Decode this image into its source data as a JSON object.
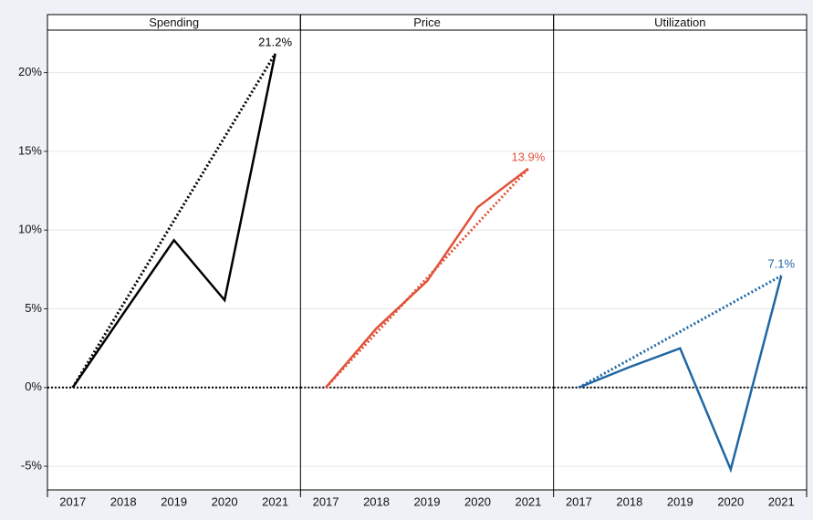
{
  "chart_data": [
    {
      "type": "line",
      "title": "Spending",
      "categories": [
        "2017",
        "2018",
        "2019",
        "2020",
        "2021"
      ],
      "series": [
        {
          "color": "#000000",
          "style": "solid",
          "values": [
            0,
            4.7,
            9.36,
            5.55,
            21.2
          ],
          "value_labels": [
            null,
            null,
            null,
            null,
            "21.2%"
          ]
        },
        {
          "color": "#000000",
          "style": "dotted",
          "values": [
            0,
            5.3,
            10.6,
            15.9,
            21.2
          ]
        }
      ],
      "ylim": [
        -6.5,
        22.7
      ],
      "yticks": [
        {
          "value": -5,
          "label": "-5%"
        },
        {
          "value": 0,
          "label": "0%"
        },
        {
          "value": 5,
          "label": "5%"
        },
        {
          "value": 10,
          "label": "10%"
        },
        {
          "value": 15,
          "label": "15%"
        },
        {
          "value": 20,
          "label": "20%"
        }
      ],
      "grid": true,
      "hline": 0
    },
    {
      "type": "line",
      "title": "Price",
      "categories": [
        "2017",
        "2018",
        "2019",
        "2020",
        "2021"
      ],
      "series": [
        {
          "color": "#e0533a",
          "style": "solid",
          "values": [
            0,
            3.76,
            6.76,
            11.45,
            13.9
          ],
          "value_labels": [
            null,
            null,
            null,
            null,
            "13.9%"
          ]
        },
        {
          "color": "#e0533a",
          "style": "dotted",
          "values": [
            0,
            3.475,
            6.95,
            10.425,
            13.9
          ]
        }
      ],
      "ylim": [
        -6.5,
        22.7
      ],
      "grid": true,
      "hline": 0
    },
    {
      "type": "line",
      "title": "Utilization",
      "categories": [
        "2017",
        "2018",
        "2019",
        "2020",
        "2021"
      ],
      "series": [
        {
          "color": "#1f66a3",
          "style": "solid",
          "values": [
            0,
            1.3,
            2.49,
            -5.2,
            7.1
          ],
          "value_labels": [
            null,
            null,
            null,
            null,
            "7.1%"
          ]
        },
        {
          "color": "#1f66a3",
          "style": "dotted",
          "values": [
            0,
            1.775,
            3.55,
            5.325,
            7.1
          ]
        }
      ],
      "ylim": [
        -6.5,
        22.7
      ],
      "grid": true,
      "hline": 0
    }
  ]
}
